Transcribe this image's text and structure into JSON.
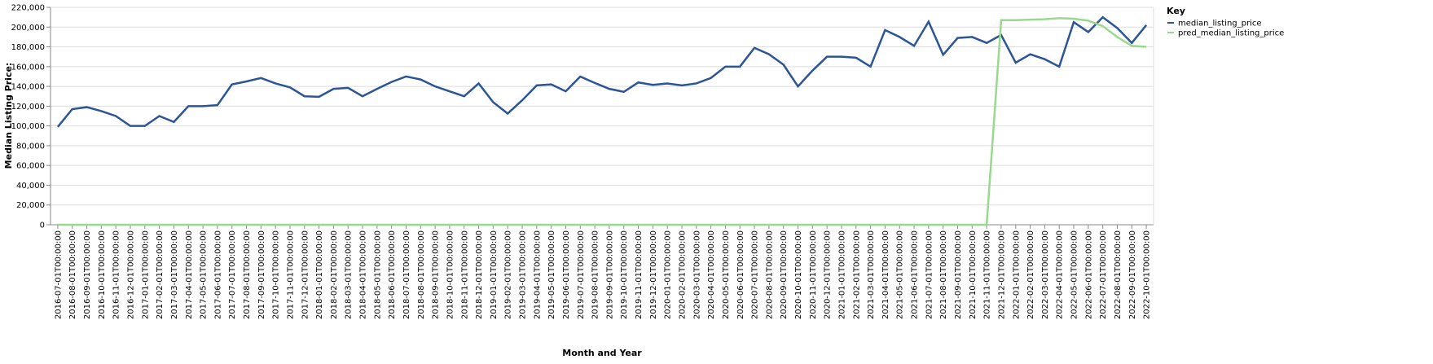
{
  "chart_data": {
    "type": "line",
    "x_label": "Month and Year",
    "y_label": "Median Listing Price:",
    "legend_title": "Key",
    "legend": "top-right",
    "grid": true,
    "categories": [
      "2016-07-01T00:00:00",
      "2016-08-01T00:00:00",
      "2016-09-01T00:00:00",
      "2016-10-01T00:00:00",
      "2016-11-01T00:00:00",
      "2016-12-01T00:00:00",
      "2017-01-01T00:00:00",
      "2017-02-01T00:00:00",
      "2017-03-01T00:00:00",
      "2017-04-01T00:00:00",
      "2017-05-01T00:00:00",
      "2017-06-01T00:00:00",
      "2017-07-01T00:00:00",
      "2017-08-01T00:00:00",
      "2017-09-01T00:00:00",
      "2017-10-01T00:00:00",
      "2017-11-01T00:00:00",
      "2017-12-01T00:00:00",
      "2018-01-01T00:00:00",
      "2018-02-01T00:00:00",
      "2018-03-01T00:00:00",
      "2018-04-01T00:00:00",
      "2018-05-01T00:00:00",
      "2018-06-01T00:00:00",
      "2018-07-01T00:00:00",
      "2018-08-01T00:00:00",
      "2018-09-01T00:00:00",
      "2018-10-01T00:00:00",
      "2018-11-01T00:00:00",
      "2018-12-01T00:00:00",
      "2019-01-01T00:00:00",
      "2019-02-01T00:00:00",
      "2019-03-01T00:00:00",
      "2019-04-01T00:00:00",
      "2019-05-01T00:00:00",
      "2019-06-01T00:00:00",
      "2019-07-01T00:00:00",
      "2019-08-01T00:00:00",
      "2019-09-01T00:00:00",
      "2019-10-01T00:00:00",
      "2019-11-01T00:00:00",
      "2019-12-01T00:00:00",
      "2020-01-01T00:00:00",
      "2020-02-01T00:00:00",
      "2020-03-01T00:00:00",
      "2020-04-01T00:00:00",
      "2020-05-01T00:00:00",
      "2020-06-01T00:00:00",
      "2020-07-01T00:00:00",
      "2020-08-01T00:00:00",
      "2020-09-01T00:00:00",
      "2020-10-01T00:00:00",
      "2020-11-01T00:00:00",
      "2020-12-01T00:00:00",
      "2021-01-01T00:00:00",
      "2021-02-01T00:00:00",
      "2021-03-01T00:00:00",
      "2021-04-01T00:00:00",
      "2021-05-01T00:00:00",
      "2021-06-01T00:00:00",
      "2021-07-01T00:00:00",
      "2021-08-01T00:00:00",
      "2021-09-01T00:00:00",
      "2021-10-01T00:00:00",
      "2021-11-01T00:00:00",
      "2021-12-01T00:00:00",
      "2022-01-01T00:00:00",
      "2022-02-01T00:00:00",
      "2022-03-01T00:00:00",
      "2022-04-01T00:00:00",
      "2022-05-01T00:00:00",
      "2022-06-01T00:00:00",
      "2022-07-01T00:00:00",
      "2022-08-01T00:00:00",
      "2022-09-01T00:00:00",
      "2022-10-01T00:00:00"
    ],
    "series": [
      {
        "name": "median_listing_price",
        "color": "#2c5597",
        "values": [
          99000,
          117000,
          119000,
          115000,
          110000,
          100000,
          100000,
          110000,
          104000,
          120000,
          120000,
          121000,
          142000,
          145000,
          148500,
          143000,
          139000,
          130000,
          129500,
          137500,
          138500,
          130000,
          137500,
          144500,
          150000,
          147000,
          140000,
          135000,
          130000,
          143000,
          124000,
          112500,
          126000,
          141000,
          142000,
          135000,
          150000,
          143500,
          137500,
          134500,
          144000,
          141500,
          143000,
          141000,
          143000,
          148500,
          160000,
          160000,
          179000,
          172500,
          162000,
          140000,
          156000,
          170000,
          170000,
          169000,
          160000,
          197000,
          190000,
          181000,
          205500,
          172000,
          189000,
          190000,
          184000,
          192000,
          164000,
          172500,
          167500,
          160000,
          205000,
          195000,
          210000,
          199000,
          184000,
          202000
        ]
      },
      {
        "name": "pred_median_listing_price",
        "color": "#98d98e",
        "values": [
          0,
          0,
          0,
          0,
          0,
          0,
          0,
          0,
          0,
          0,
          0,
          0,
          0,
          0,
          0,
          0,
          0,
          0,
          0,
          0,
          0,
          0,
          0,
          0,
          0,
          0,
          0,
          0,
          0,
          0,
          0,
          0,
          0,
          0,
          0,
          0,
          0,
          0,
          0,
          0,
          0,
          0,
          0,
          0,
          0,
          0,
          0,
          0,
          0,
          0,
          0,
          0,
          0,
          0,
          0,
          0,
          0,
          0,
          0,
          0,
          0,
          0,
          0,
          0,
          0,
          207000,
          207000,
          207500,
          208000,
          209000,
          208500,
          206500,
          201000,
          190000,
          181000,
          180000
        ]
      }
    ],
    "ylim": [
      0,
      220000
    ],
    "yticks": [
      0,
      {
        "value": 20000,
        "label": "20,000"
      },
      {
        "value": 40000,
        "label": "40,000"
      },
      {
        "value": 60000,
        "label": "60,000"
      },
      {
        "value": 80000,
        "label": "80,000"
      },
      {
        "value": 100000,
        "label": "100,000"
      },
      {
        "value": 120000,
        "label": "120,000"
      },
      {
        "value": 140000,
        "label": "140,000"
      },
      {
        "value": 160000,
        "label": "160,000"
      },
      {
        "value": 180000,
        "label": "180,000"
      },
      {
        "value": 200000,
        "label": "200,000"
      },
      {
        "value": 220000,
        "label": "220,000"
      }
    ]
  }
}
